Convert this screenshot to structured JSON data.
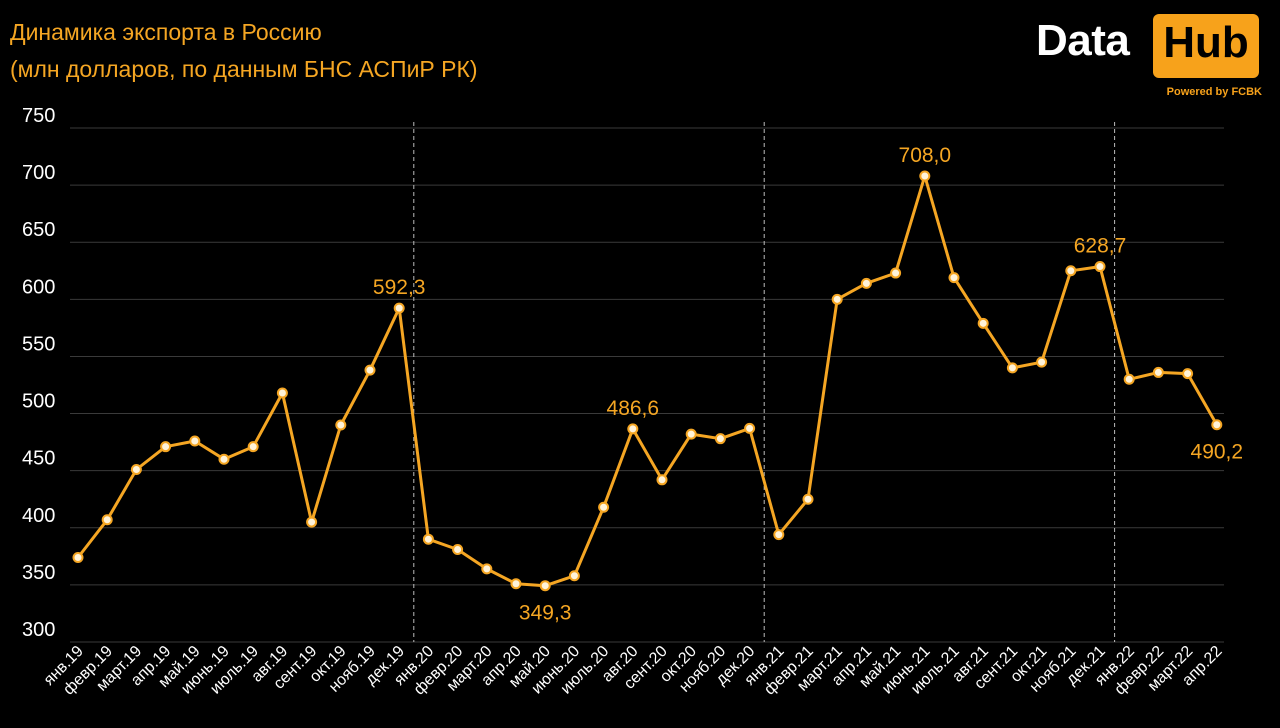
{
  "header": {
    "title_line1": "Динамика экспорта в Россию",
    "title_line2": "(млн долларов, по данным БНС АСПиР РК)"
  },
  "logo": {
    "word1": "Data",
    "word2": "Hub",
    "tagline": "Powered by FCBK"
  },
  "colors": {
    "background": "#000000",
    "line": "#f5a623",
    "accent": "#f7a21b",
    "grid": "#3a3a3a",
    "text": "#ffffff"
  },
  "chart_data": {
    "type": "line",
    "title": "Динамика экспорта в Россию",
    "subtitle": "(млн долларов, по данным БНС АСПиР РК)",
    "xlabel": "",
    "ylabel": "",
    "ylim": [
      300,
      750
    ],
    "yticks": [
      300,
      350,
      400,
      450,
      500,
      550,
      600,
      650,
      700,
      750
    ],
    "grid": true,
    "legend": "none",
    "categories": [
      "янв.19",
      "февр.19",
      "март.19",
      "апр.19",
      "май.19",
      "июнь.19",
      "июль.19",
      "авг.19",
      "сент.19",
      "окт.19",
      "нояб.19",
      "дек.19",
      "янв.20",
      "февр.20",
      "март.20",
      "апр.20",
      "май.20",
      "июнь.20",
      "июль.20",
      "авг.20",
      "сент.20",
      "окт.20",
      "нояб.20",
      "дек.20",
      "янв.21",
      "февр.21",
      "март.21",
      "апр.21",
      "май.21",
      "июнь.21",
      "июль.21",
      "авг.21",
      "сент.21",
      "окт.21",
      "нояб.21",
      "дек.21",
      "янв.22",
      "февр.22",
      "март.22",
      "апр.22"
    ],
    "values": [
      374,
      407,
      451,
      471,
      476,
      460,
      471,
      518,
      405,
      490,
      538,
      592.3,
      390,
      381,
      364,
      351,
      349.3,
      358,
      418,
      486.6,
      442,
      482,
      478,
      487,
      394,
      425,
      600,
      614,
      623,
      708.0,
      619,
      579,
      540,
      545,
      625,
      628.7,
      530,
      536,
      535,
      490.2
    ],
    "annotations": [
      {
        "index": 11,
        "text": "592,3",
        "position": "above"
      },
      {
        "index": 16,
        "text": "349,3",
        "position": "below"
      },
      {
        "index": 19,
        "text": "486,6",
        "position": "above"
      },
      {
        "index": 29,
        "text": "708,0",
        "position": "above"
      },
      {
        "index": 35,
        "text": "628,7",
        "position": "above"
      },
      {
        "index": 39,
        "text": "490,2",
        "position": "below"
      }
    ],
    "year_separators_after_index": [
      11,
      23,
      35
    ]
  }
}
